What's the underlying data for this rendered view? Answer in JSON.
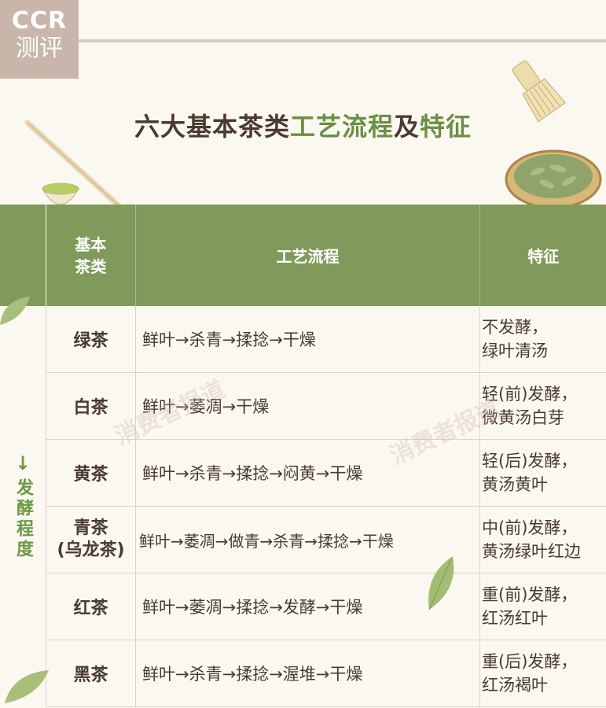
{
  "logo": {
    "line1": "CCR",
    "line2": "测评"
  },
  "title": {
    "part1": "六大基本茶类",
    "part2": "工艺流程",
    "part3": "及",
    "part4": "特征"
  },
  "side": {
    "arrow": "↓",
    "label": "发酵程度"
  },
  "table": {
    "headers": {
      "category": "基本\n茶类",
      "process": "工艺流程",
      "feature": "特征"
    },
    "rows": [
      {
        "category": "绿茶",
        "process": "鲜叶→杀青→揉捻→干燥",
        "feature": "不发酵，\n绿叶清汤"
      },
      {
        "category": "白茶",
        "process": "鲜叶→萎凋→干燥",
        "feature": "轻(前)发酵，\n微黄汤白芽"
      },
      {
        "category": "黄茶",
        "process": "鲜叶→杀青→揉捻→闷黄→干燥",
        "feature": "轻(后)发酵，\n黄汤黄叶"
      },
      {
        "category": "青茶\n(乌龙茶)",
        "process": "鲜叶→萎凋→做青→杀青→揉捻→干燥",
        "feature": "中(前)发酵，\n黄汤绿叶红边"
      },
      {
        "category": "红茶",
        "process": "鲜叶→萎凋→揉捻→发酵→干燥",
        "feature": "重(前)发酵，\n红汤红叶"
      },
      {
        "category": "黑茶",
        "process": "鲜叶→杀青→揉捻→渥堆→干燥",
        "feature": "重(后)发酵，\n红汤褐叶"
      }
    ]
  },
  "watermark": "消费者报道",
  "colors": {
    "header_green": "#7f9a5b",
    "accent_green": "#6f9845",
    "logo_bg": "#c9b5a9"
  }
}
